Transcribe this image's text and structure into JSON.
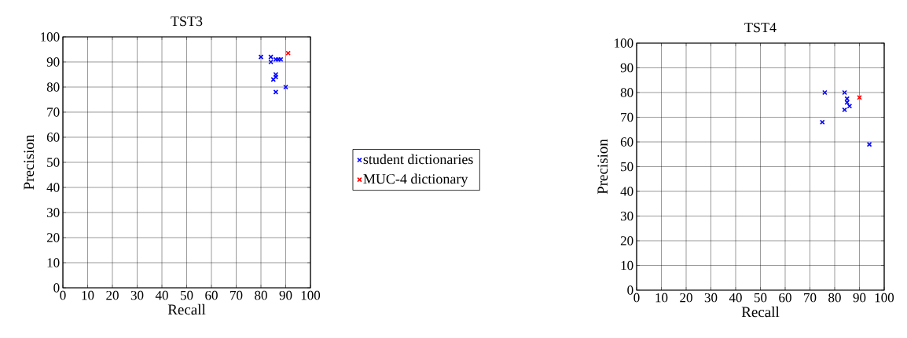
{
  "chart_data": [
    {
      "type": "scatter",
      "title": "TST3",
      "xlabel": "Recall",
      "ylabel": "Precision",
      "xlim": [
        0,
        100
      ],
      "ylim": [
        0,
        100
      ],
      "xticks": [
        0,
        10,
        20,
        30,
        40,
        50,
        60,
        70,
        80,
        90,
        100
      ],
      "yticks": [
        0,
        10,
        20,
        30,
        40,
        50,
        60,
        70,
        80,
        90,
        100
      ],
      "grid": true,
      "legend": "right",
      "marker": "cross",
      "series": [
        {
          "name": "student dictionaries",
          "color": "#0000ff",
          "x": [
            80,
            84,
            84,
            86,
            87,
            88,
            86,
            86,
            85,
            86,
            90
          ],
          "values": [
            92,
            92,
            90,
            91,
            91,
            91,
            85,
            84,
            83,
            78,
            80
          ]
        },
        {
          "name": "MUC-4 dictionary",
          "color": "#ff0000",
          "x": [
            91
          ],
          "values": [
            93.5
          ]
        }
      ]
    },
    {
      "type": "scatter",
      "title": "TST4",
      "xlabel": "Recall",
      "ylabel": "Precision",
      "xlim": [
        0,
        100
      ],
      "ylim": [
        0,
        100
      ],
      "xticks": [
        0,
        10,
        20,
        30,
        40,
        50,
        60,
        70,
        80,
        90,
        100
      ],
      "yticks": [
        0,
        10,
        20,
        30,
        40,
        50,
        60,
        70,
        80,
        90,
        100
      ],
      "grid": true,
      "marker": "cross",
      "series": [
        {
          "color": "#0000ff",
          "x": [
            76,
            84,
            85,
            85,
            86,
            84,
            75,
            94
          ],
          "values": [
            80,
            80,
            77.5,
            76,
            74.5,
            73,
            68,
            59
          ]
        },
        {
          "color": "#ff0000",
          "x": [
            90
          ],
          "values": [
            78
          ]
        }
      ]
    }
  ]
}
